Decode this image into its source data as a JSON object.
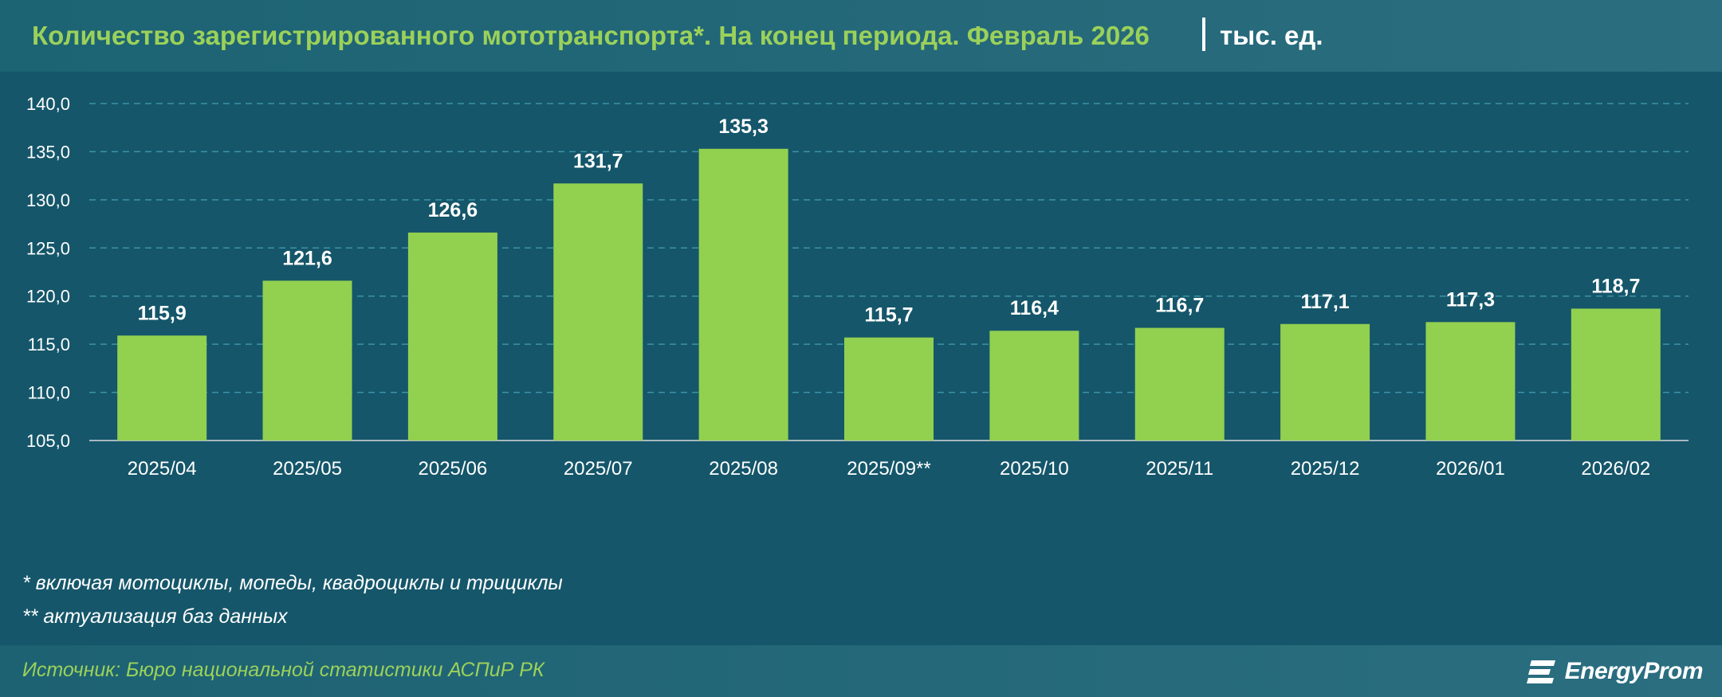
{
  "header": {
    "title": "Количество зарегистрированного мототранспорта*. На конец периода. Февраль 2026",
    "unit": "тыс. ед."
  },
  "colors": {
    "background": "#175a6b",
    "bar": "#92d050",
    "title": "#9bd15a",
    "gridline": "#3d93a8",
    "text": "#ffffff"
  },
  "chart_data": {
    "type": "bar",
    "categories": [
      "2025/04",
      "2025/05",
      "2025/06",
      "2025/07",
      "2025/08",
      "2025/09**",
      "2025/10",
      "2025/11",
      "2025/12",
      "2026/01",
      "2026/02"
    ],
    "values": [
      115.9,
      121.6,
      126.6,
      131.7,
      135.3,
      115.7,
      116.4,
      116.7,
      117.1,
      117.3,
      118.7
    ],
    "value_labels": [
      "115,9",
      "121,6",
      "126,6",
      "131,7",
      "135,3",
      "115,7",
      "116,4",
      "116,7",
      "117,1",
      "117,3",
      "118,7"
    ],
    "ylim": [
      105,
      140
    ],
    "yticks": [
      105,
      110,
      115,
      120,
      125,
      130,
      135,
      140
    ],
    "ytick_labels": [
      "105,0",
      "110,0",
      "115,0",
      "120,0",
      "125,0",
      "130,0",
      "135,0",
      "140,0"
    ],
    "grid": true,
    "legend": "none"
  },
  "footnotes": [
    "* включая мотоциклы, мопеды, квадроциклы и трициклы",
    "** актуализация баз данных"
  ],
  "footer": {
    "source": "Источник: Бюро национальной статистики АСПиР РК",
    "logo_text": "EnergyProm"
  }
}
